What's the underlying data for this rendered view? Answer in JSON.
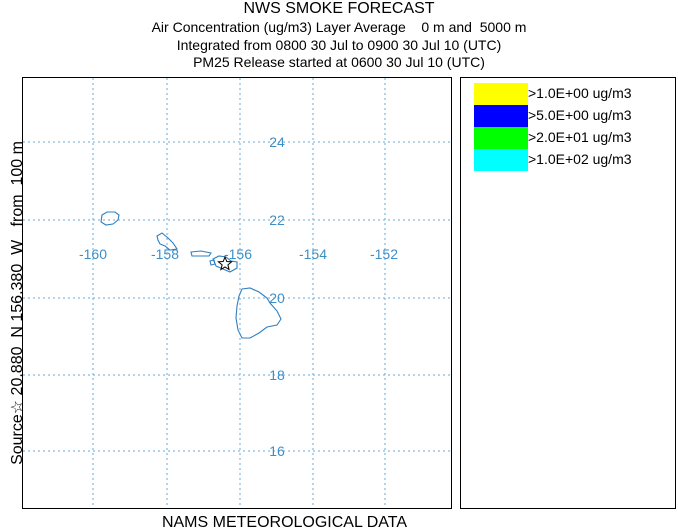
{
  "header": {
    "title": "NWS SMOKE FORECAST",
    "line1": "Air Concentration (ug/m3) Layer Average    0 m and  5000 m",
    "line2": "Integrated from 0800 30 Jul to 0900 30 Jul 10 (UTC)",
    "line3": "PM25 Release started at 0600 30 Jul 10 (UTC)"
  },
  "map": {
    "lon_labels": [
      "-160",
      "-158",
      "-156",
      "-154",
      "-152"
    ],
    "lat_labels": [
      "24",
      "22",
      "20",
      "18",
      "16"
    ],
    "grid_color": "#6aa8d8",
    "label_color": "#3d8fc7",
    "coastline_color": "#2f7fc1",
    "source_marker": "star-icon"
  },
  "legend": {
    "items": [
      {
        "label": ">1.0E+00 ug/m3",
        "color": "#ffff00"
      },
      {
        "label": ">5.0E+00 ug/m3",
        "color": "#0000ff"
      },
      {
        "label": ">2.0E+01 ug/m3",
        "color": "#00ff00"
      },
      {
        "label": ">1.0E+02 ug/m3",
        "color": "#00ffff"
      }
    ]
  },
  "side_label": "Source☆ 20.880  N 156.380  W   from  100 m",
  "bottom_label": "NAMS METEOROLOGICAL DATA"
}
